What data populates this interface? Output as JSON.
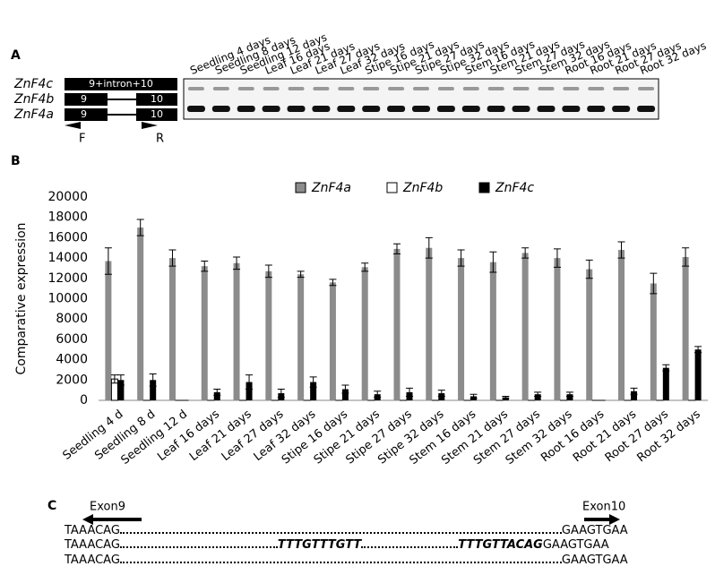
{
  "panel_a": {
    "label": "A",
    "lanes": [
      "Seedling 4 days",
      "Seedling 8 days",
      "Seedling 12 days",
      "Leaf 16 days",
      "Leaf 21 days",
      "Leaf 27 days",
      "Leaf 32 days",
      "Stipe 16 days",
      "Stipe 21 days",
      "Stipe 27 days",
      "Stipe 32 days",
      "Stem 16 days",
      "Stem 21 days",
      "Stem 27 days",
      "Stem 32 days",
      "Root 16 days",
      "Root 21 days",
      "Root 27 days",
      "Root 32 days"
    ],
    "genes": [
      {
        "name": "ZnF4c",
        "exons": [
          "9+intron+10"
        ]
      },
      {
        "name": "ZnF4b",
        "exons": [
          "9",
          "10"
        ]
      },
      {
        "name": "ZnF4a",
        "exons": [
          "9",
          "10"
        ]
      }
    ],
    "primers": [
      "F",
      "R"
    ]
  },
  "chart_data": {
    "type": "bar",
    "label": "B",
    "ylabel": "Comparative expression",
    "categories": [
      "Seedling 4 d",
      "Seedling 8 d",
      "Seedling 12 d",
      "Leaf 16 days",
      "Leaf 21 days",
      "Leaf 27 days",
      "Leaf 32 days",
      "Stipe 16 days",
      "Stipe 21 days",
      "Stipe 27 days",
      "Stipe 32 days",
      "Stem 16 days",
      "Stem 21 days",
      "Stem 27 days",
      "Stem 32 days",
      "Root 16 days",
      "Root 21 days",
      "Root 27 days",
      "Root 32 days"
    ],
    "series": [
      {
        "name": "ZnF4a",
        "color": "#8c8c8c",
        "values": [
          13700,
          17000,
          14000,
          13200,
          13500,
          12700,
          12400,
          11600,
          13100,
          14900,
          15000,
          14000,
          13600,
          14500,
          14000,
          12900,
          14800,
          11500,
          14100
        ],
        "errors": [
          1300,
          800,
          800,
          500,
          600,
          600,
          300,
          300,
          400,
          500,
          1000,
          800,
          1000,
          500,
          900,
          900,
          800,
          1000,
          900
        ]
      },
      {
        "name": "ZnF4b",
        "color": "#ffffff",
        "values": [
          2100,
          0,
          0,
          0,
          0,
          0,
          0,
          0,
          0,
          0,
          0,
          0,
          0,
          0,
          0,
          0,
          0,
          0,
          0
        ],
        "errors": [
          400,
          0,
          0,
          0,
          0,
          0,
          0,
          0,
          0,
          0,
          0,
          0,
          0,
          0,
          0,
          0,
          0,
          0,
          0
        ]
      },
      {
        "name": "ZnF4c",
        "color": "#000000",
        "values": [
          2000,
          2000,
          0,
          800,
          1800,
          700,
          1800,
          1100,
          600,
          800,
          700,
          400,
          300,
          600,
          600,
          0,
          900,
          3200,
          5000
        ],
        "errors": [
          500,
          600,
          0,
          300,
          700,
          400,
          500,
          400,
          300,
          400,
          300,
          200,
          100,
          200,
          200,
          0,
          300,
          300,
          300
        ]
      }
    ],
    "ylim": [
      0,
      20000
    ],
    "yticks": [
      0,
      2000,
      4000,
      6000,
      8000,
      10000,
      12000,
      14000,
      16000,
      18000,
      20000
    ],
    "legend": "top"
  },
  "panel_c": {
    "label": "C",
    "exon_left": "Exon9",
    "exon_right": "Exon10",
    "rows": [
      [
        "TAAACAG",
        "GAAGTGAA"
      ],
      [
        "TAAACAG",
        "TTTGTTTGTT",
        "TTTGTTACAG",
        "GAAGTGAA"
      ],
      [
        "TAAACAG",
        "GAAGTGAA"
      ]
    ]
  }
}
